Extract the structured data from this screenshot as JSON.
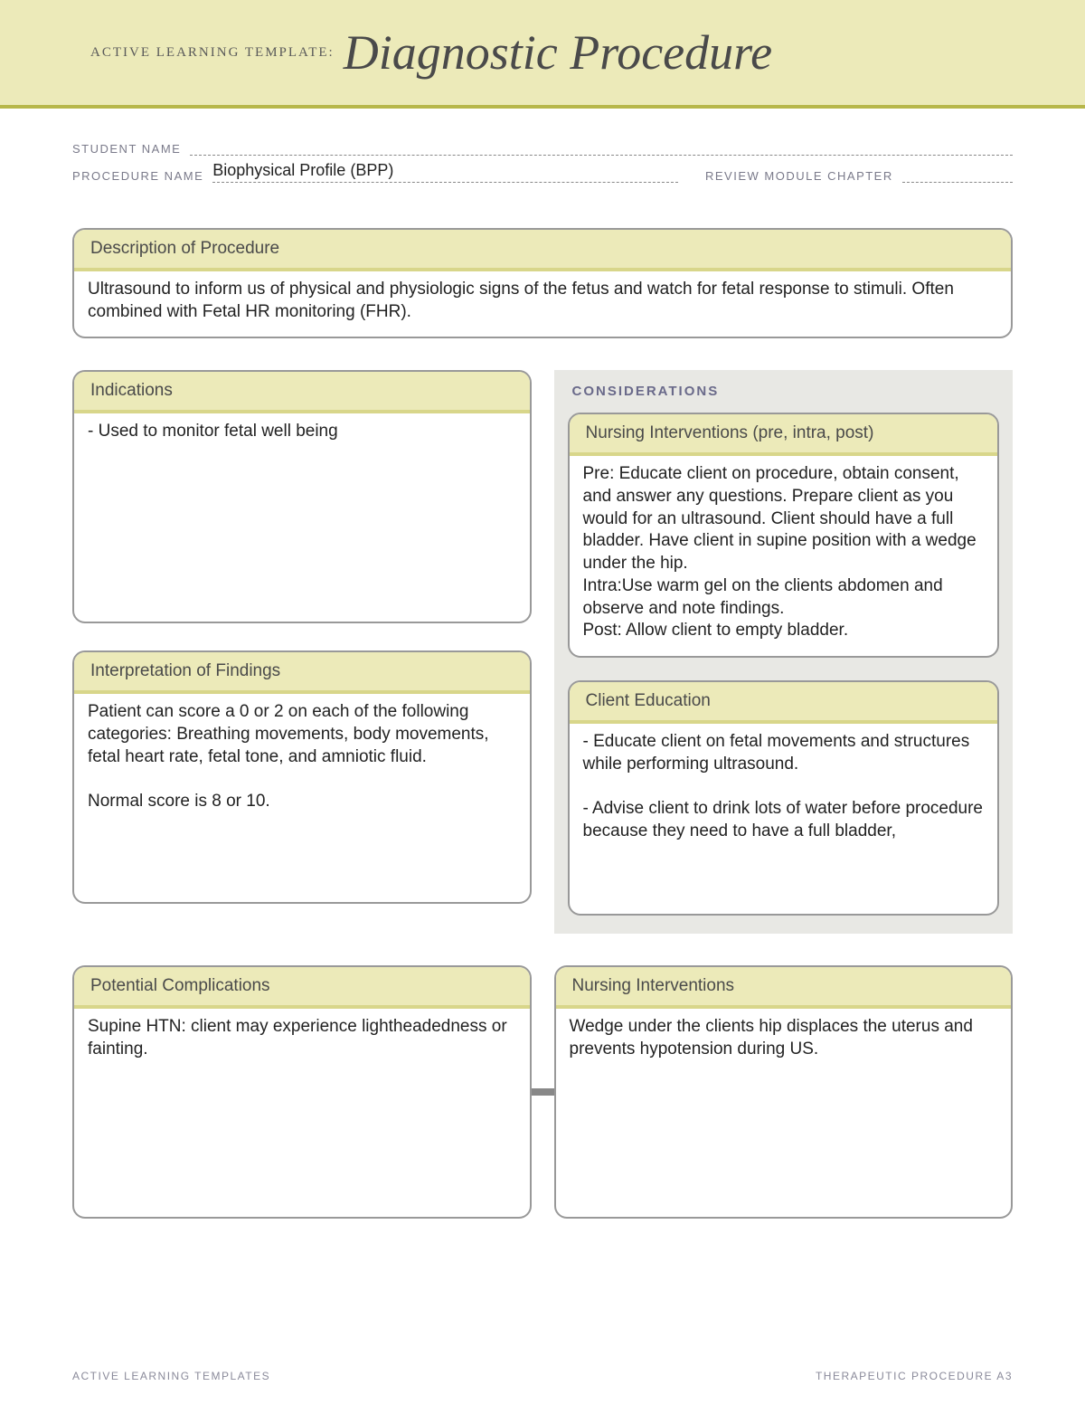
{
  "colors": {
    "banner_bg": "#eceab9",
    "banner_border": "#b7b74a",
    "card_header_bg": "#eceab9",
    "card_header_border": "#d8d68a",
    "card_border": "#999999",
    "considerations_bg": "#e8e8e4",
    "text_primary": "#222222",
    "text_muted": "#7a7a8a",
    "page_bg": "#ffffff"
  },
  "typography": {
    "title_font": "Georgia, serif",
    "title_fontsize": 54,
    "body_font": "Arial, Helvetica, sans-serif",
    "body_fontsize": 19,
    "label_fontsize": 13
  },
  "banner": {
    "prefix": "ACTIVE LEARNING TEMPLATE:",
    "title": "Diagnostic Procedure"
  },
  "fields": {
    "student_name_label": "STUDENT NAME",
    "student_name_value": "",
    "procedure_name_label": "PROCEDURE NAME",
    "procedure_name_value": "Biophysical Profile (BPP)",
    "review_module_label": "REVIEW MODULE CHAPTER",
    "review_module_value": ""
  },
  "description": {
    "header": "Description of Procedure",
    "body": "Ultrasound to inform us of physical and physiologic signs of the fetus and watch for fetal response to stimuli. Often combined with Fetal HR monitoring (FHR)."
  },
  "indications": {
    "header": "Indications",
    "body": "- Used to monitor fetal well being"
  },
  "interpretation": {
    "header": "Interpretation of Findings",
    "body": "Patient can score a 0 or 2 on each of the following categories: Breathing movements, body movements, fetal heart rate, fetal tone, and amniotic fluid.\n\nNormal score is 8 or 10."
  },
  "considerations": {
    "title": "CONSIDERATIONS",
    "nursing_interventions": {
      "header": "Nursing Interventions (pre, intra, post)",
      "body": "Pre: Educate client on procedure, obtain consent, and answer any questions. Prepare client as you would for an ultrasound. Client should have a full bladder. Have client in supine position with a wedge under the hip.\nIntra:Use warm gel on the clients abdomen and observe and note findings.\nPost: Allow client to empty bladder."
    },
    "client_education": {
      "header": "Client Education",
      "body": "- Educate client on fetal movements and structures while performing ultrasound.\n\n- Advise client to drink lots of water before procedure because they need to have a full bladder,"
    }
  },
  "complications": {
    "header": "Potential Complications",
    "body": "Supine HTN: client may experience lightheadedness or fainting."
  },
  "nursing_interventions_bottom": {
    "header": "Nursing Interventions",
    "body": "Wedge under the clients hip displaces the uterus and prevents hypotension during US."
  },
  "footer": {
    "left": "ACTIVE LEARNING TEMPLATES",
    "right": "THERAPEUTIC PROCEDURE   A3"
  }
}
